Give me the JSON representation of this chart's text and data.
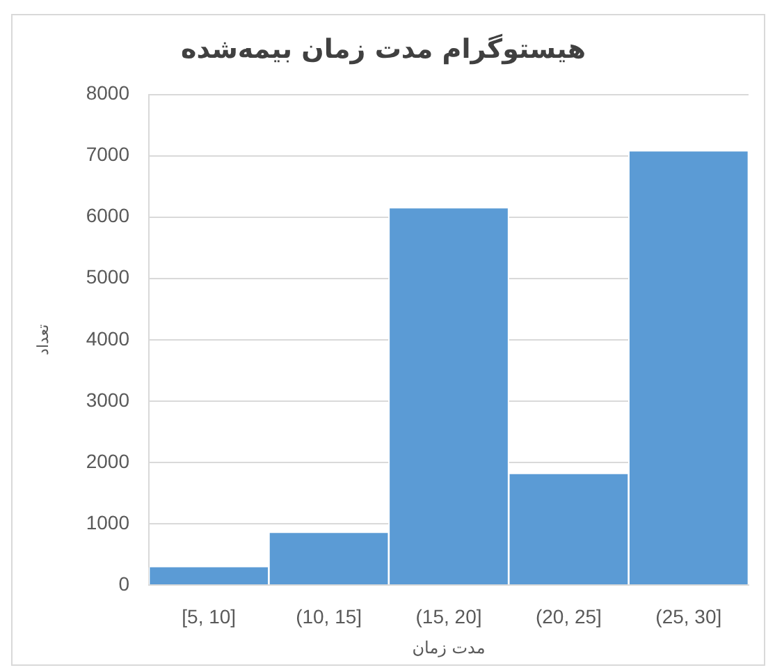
{
  "chart_data": {
    "type": "bar",
    "title": "هیستوگرام مدت زمان بیمه‌شده",
    "xlabel": "مدت زمان",
    "ylabel": "تعداد",
    "categories": [
      "[5, 10]",
      "(10, 15]",
      "(15, 20]",
      "(20, 25]",
      "(25, 30]"
    ],
    "values": [
      290,
      850,
      6140,
      1810,
      7070
    ],
    "color": "#5b9bd5",
    "ylim": [
      0,
      8000
    ],
    "yticks": [
      0,
      1000,
      2000,
      3000,
      4000,
      5000,
      6000,
      7000,
      8000
    ],
    "grid": "y"
  }
}
